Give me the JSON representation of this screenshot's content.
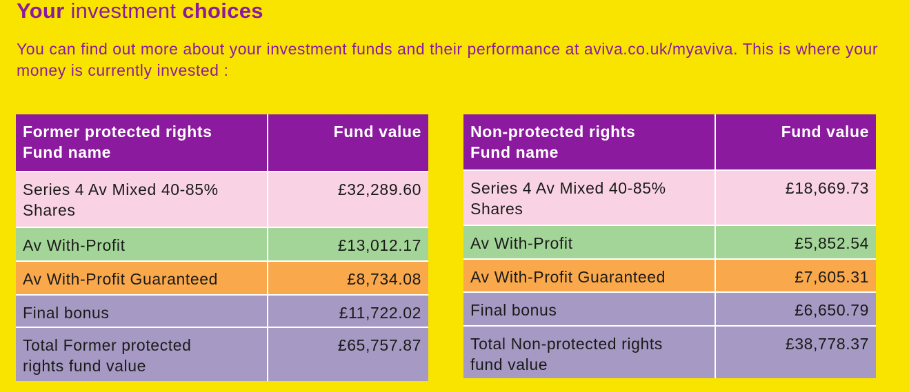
{
  "header": {
    "title": {
      "part1": "Your",
      "part2": "investment",
      "part3": "choices"
    },
    "intro": "You can find out more about your investment funds and their performance at aviva.co.uk/myaviva. This is where your money is currently invested :"
  },
  "tables": [
    {
      "columns": [
        "Former protected rights\nFund name",
        "Fund value"
      ],
      "rows": [
        [
          "Series 4 Av Mixed 40-85%\nShares",
          "£32,289.60"
        ],
        [
          "Av With-Profit",
          "£13,012.17"
        ],
        [
          "Av With-Profit Guaranteed",
          "£8,734.08"
        ],
        [
          "Final bonus",
          "£11,722.02"
        ],
        [
          "Total Former protected\nrights fund value",
          "£65,757.87"
        ]
      ]
    },
    {
      "columns": [
        "Non-protected rights\nFund name",
        "Fund value"
      ],
      "rows": [
        [
          "Series 4 Av Mixed 40-85%\nShares",
          "£18,669.73"
        ],
        [
          "Av With-Profit",
          "£5,852.54"
        ],
        [
          "Av With-Profit Guaranteed",
          "£7,605.31"
        ],
        [
          "Final bonus",
          "£6,650.79"
        ],
        [
          "Total Non-protected rights\nfund value",
          "£38,778.37"
        ]
      ]
    }
  ]
}
